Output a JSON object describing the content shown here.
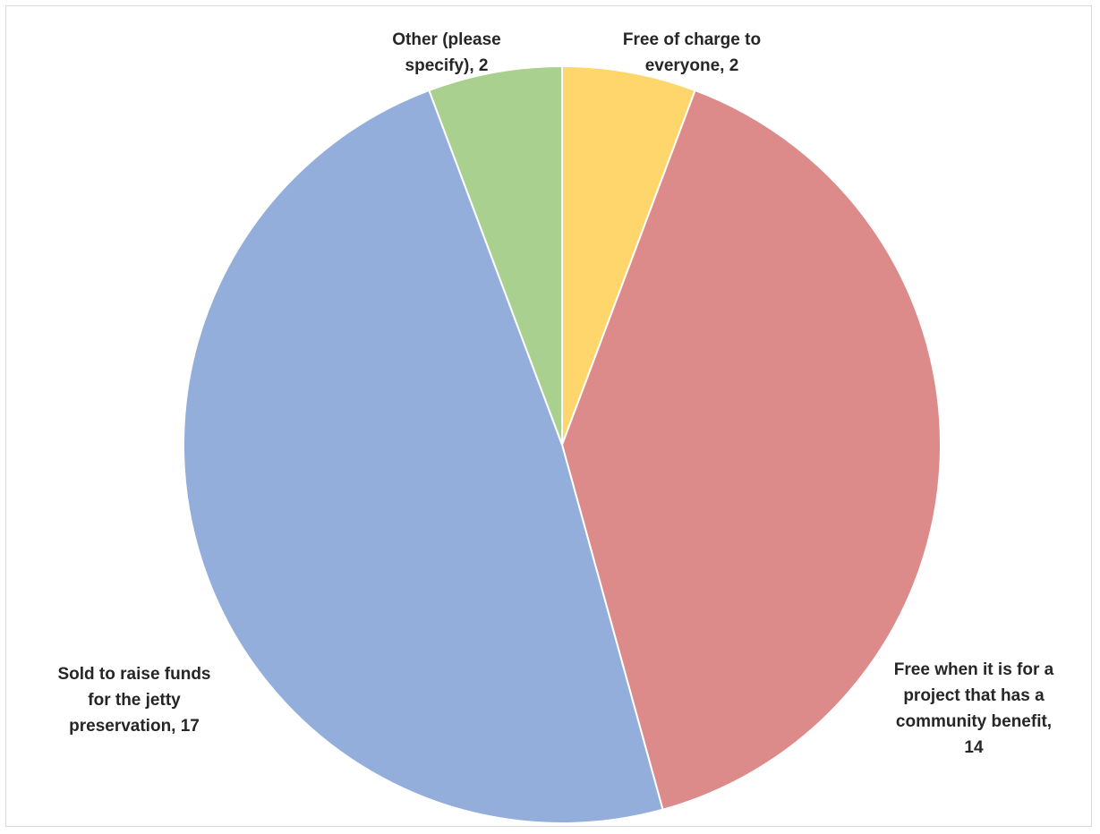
{
  "chart_data": {
    "type": "pie",
    "title": "",
    "start_angle_deg": 0,
    "direction": "clockwise",
    "slices": [
      {
        "label": "Free of charge to everyone",
        "value": 2,
        "color": "#ffd66b",
        "label_lines": [
          "Free of charge to",
          "everyone, 2"
        ]
      },
      {
        "label": "Free when it is for a project that has a community benefit",
        "value": 14,
        "color": "#dc8a8a",
        "label_lines": [
          "Free when it is for a",
          "project that has a",
          "community benefit,",
          "14"
        ]
      },
      {
        "label": "Sold to raise funds for the jetty preservation",
        "value": 17,
        "color": "#93aedb",
        "label_lines": [
          "Sold to raise funds",
          "for the jetty",
          "preservation, 17"
        ]
      },
      {
        "label": "Other (please specify)",
        "value": 2,
        "color": "#a9d08e",
        "label_lines": [
          "Other (please",
          "specify), 2"
        ]
      }
    ]
  }
}
